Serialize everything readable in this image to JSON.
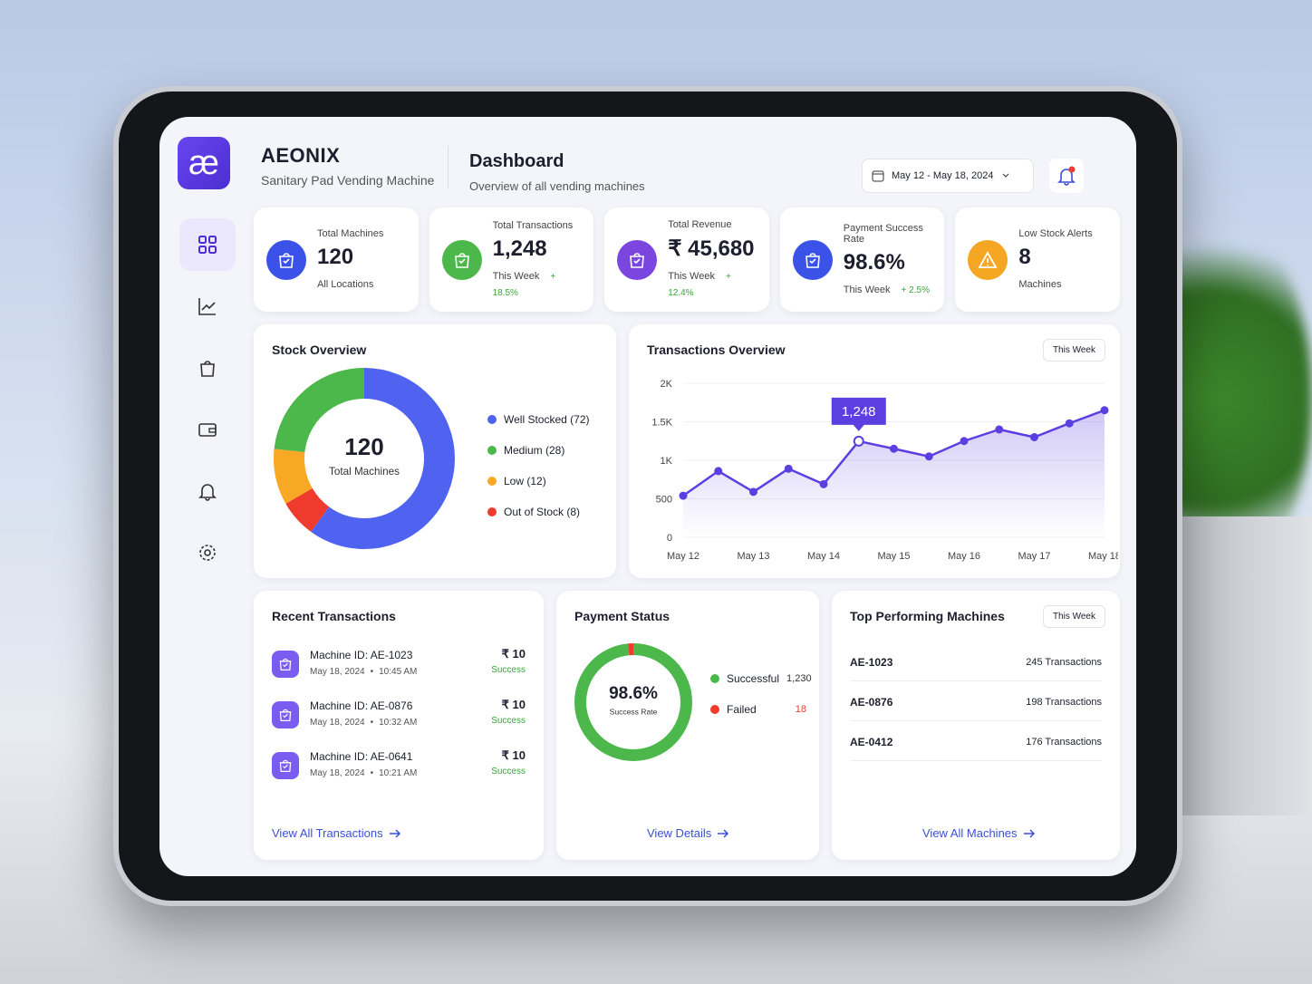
{
  "header": {
    "logo": "æ",
    "brand": "AEONIX",
    "brand_subtitle": "Sanitary Pad Vending Machine",
    "title": "Dashboard",
    "subtitle": "Overview of all vending machines",
    "date_range": "May 12 - May 18, 2024"
  },
  "kpis": [
    {
      "label": "Total Machines",
      "value": "120",
      "note": "All Locations"
    },
    {
      "label": "Total Transactions",
      "value": "1,248",
      "note": "This Week",
      "change": "+ 18.5%"
    },
    {
      "label": "Total Revenue",
      "value": "₹ 45,680",
      "note": "This Week",
      "change": "+ 12.4%"
    },
    {
      "label": "Payment Success Rate",
      "value": "98.6%",
      "note": "This Week",
      "change": "+ 2.5%"
    },
    {
      "label": "Low Stock Alerts",
      "value": "8",
      "note": "Machines"
    }
  ],
  "chart_data": [
    {
      "type": "donut",
      "title": "Stock Overview",
      "center_value": "120",
      "center_label": "Total Machines",
      "categories": [
        "Well Stocked (72)",
        "Medium (28)",
        "Low (12)",
        "Out of Stock (8)"
      ],
      "values": [
        72,
        28,
        12,
        8
      ],
      "colors": [
        "#4f63f0",
        "#4cb84c",
        "#f9a825",
        "#ef3b2d"
      ],
      "order": [
        0,
        3,
        2,
        1
      ]
    },
    {
      "type": "line",
      "title": "Transactions Overview",
      "filter": "This Week",
      "categories": [
        "May 12",
        null,
        "May 13",
        null,
        "May 14",
        null,
        "May 15",
        null,
        "May 16",
        null,
        "May 17",
        null,
        "May 18"
      ],
      "values": [
        540,
        860,
        590,
        890,
        690,
        1248,
        1150,
        1050,
        1250,
        1400,
        1300,
        1480,
        1650
      ],
      "value_labels": [
        null,
        null,
        null,
        null,
        null,
        "1,248",
        null,
        null,
        null,
        null,
        null,
        null,
        null
      ],
      "color": "#5b3fe0",
      "ylim": [
        0,
        2000
      ],
      "yticks": [
        0,
        500,
        {
          "value": 1000,
          "label": "1K"
        },
        {
          "value": 1500,
          "label": "1.5K"
        },
        {
          "value": 2000,
          "label": "2K"
        }
      ],
      "grid": true
    },
    {
      "type": "donut",
      "title": "Payment Status",
      "center_value": "98.6%",
      "center_label": "Success Rate",
      "categories": [
        "Successful",
        "Failed"
      ],
      "values": [
        1230,
        18
      ],
      "value_labels": [
        "1,230",
        "18"
      ],
      "colors": [
        "#4cb84c",
        "#ef3b2d"
      ],
      "link": "View Details"
    }
  ],
  "recent_transactions": {
    "title": "Recent Transactions",
    "items": [
      {
        "machine": "Machine ID: AE-1023",
        "date": "May 18, 2024",
        "time": "10:45 AM",
        "amount": "₹ 10",
        "status": "Success"
      },
      {
        "machine": "Machine ID: AE-0876",
        "date": "May 18, 2024",
        "time": "10:32 AM",
        "amount": "₹ 10",
        "status": "Success"
      },
      {
        "machine": "Machine ID: AE-0641",
        "date": "May 18, 2024",
        "time": "10:21 AM",
        "amount": "₹ 10",
        "status": "Success"
      }
    ],
    "link": "View All Transactions"
  },
  "top_machines": {
    "title": "Top Performing Machines",
    "filter": "This Week",
    "rows": [
      {
        "id": "AE-1023",
        "transactions": "245 Transactions"
      },
      {
        "id": "AE-0876",
        "transactions": "198 Transactions"
      },
      {
        "id": "AE-0412",
        "transactions": "176 Transactions"
      }
    ],
    "link": "View All Machines"
  }
}
